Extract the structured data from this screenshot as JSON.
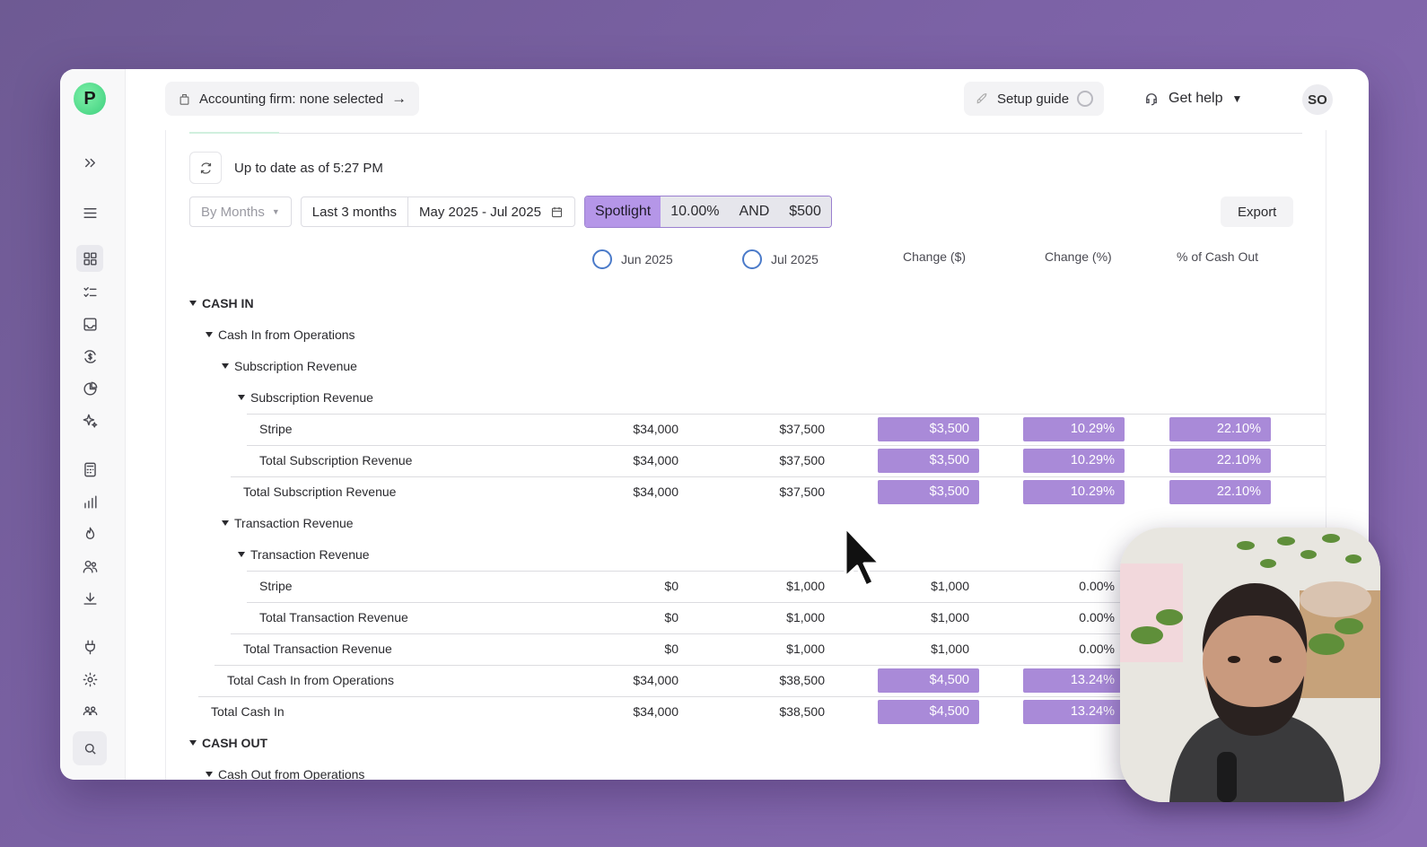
{
  "topbar": {
    "accounting_firm_label": "Accounting firm: none selected",
    "setup_guide_label": "Setup guide",
    "get_help_label": "Get help",
    "avatar_initials": "SO"
  },
  "status": {
    "updated_text": "Up to date as of 5:27 PM"
  },
  "controls": {
    "period_select": "By Months",
    "range_preset": "Last 3 months",
    "date_range": "May 2025 - Jul 2025",
    "spotlight_label": "Spotlight",
    "spotlight_percent": "10.00%",
    "spotlight_and": "AND",
    "spotlight_amount": "$500",
    "export_label": "Export"
  },
  "columns": {
    "jun": "Jun 2025",
    "jul": "Jul 2025",
    "change_dollar": "Change ($)",
    "change_percent": "Change (%)",
    "pct_cash_out": "% of Cash Out"
  },
  "rows": [
    {
      "label": "CASH IN",
      "level": 0,
      "caret": true
    },
    {
      "label": "Cash In from Operations",
      "level": 1,
      "caret": true
    },
    {
      "label": "Subscription Revenue",
      "level": 2,
      "caret": true
    },
    {
      "label": "Subscription Revenue",
      "level": 3,
      "caret": true
    },
    {
      "label": "Stripe",
      "level": 4,
      "jun": "$34,000",
      "jul": "$37,500",
      "chg": "$3,500",
      "pct": "10.29%",
      "share": "22.10%",
      "hl_chg": true,
      "hl_pct": true,
      "hl_share": true
    },
    {
      "label": "Total Subscription Revenue",
      "level": 4,
      "jun": "$34,000",
      "jul": "$37,500",
      "chg": "$3,500",
      "pct": "10.29%",
      "share": "22.10%",
      "hl_chg": true,
      "hl_pct": true,
      "hl_share": true
    },
    {
      "label": "Total Subscription Revenue",
      "level": 3,
      "jun": "$34,000",
      "jul": "$37,500",
      "chg": "$3,500",
      "pct": "10.29%",
      "share": "22.10%",
      "hl_chg": true,
      "hl_pct": true,
      "hl_share": true
    },
    {
      "label": "Transaction Revenue",
      "level": 2,
      "caret": true
    },
    {
      "label": "Transaction Revenue",
      "level": 3,
      "caret": true
    },
    {
      "label": "Stripe",
      "level": 4,
      "jun": "$0",
      "jul": "$1,000",
      "chg": "$1,000",
      "pct": "0.00%",
      "share": ""
    },
    {
      "label": "Total Transaction Revenue",
      "level": 4,
      "jun": "$0",
      "jul": "$1,000",
      "chg": "$1,000",
      "pct": "0.00%",
      "share": ""
    },
    {
      "label": "Total Transaction Revenue",
      "level": 3,
      "jun": "$0",
      "jul": "$1,000",
      "chg": "$1,000",
      "pct": "0.00%",
      "share": ""
    },
    {
      "label": "Total Cash In from Operations",
      "level": 2,
      "jun": "$34,000",
      "jul": "$38,500",
      "chg": "$4,500",
      "pct": "13.24%",
      "share": "",
      "hl_chg": true,
      "hl_pct": true
    },
    {
      "label": "Total Cash In",
      "level": 1,
      "jun": "$34,000",
      "jul": "$38,500",
      "chg": "$4,500",
      "pct": "13.24%",
      "share": "",
      "hl_chg": true,
      "hl_pct": true
    },
    {
      "label": "CASH OUT",
      "level": 0,
      "caret": true
    },
    {
      "label": "Cash Out from Operations",
      "level": 1,
      "caret": true
    }
  ],
  "colors": {
    "highlight": "#a98ad8",
    "spotlight_chip": "#b596e8",
    "brand_logo": "#3ccf7c"
  }
}
